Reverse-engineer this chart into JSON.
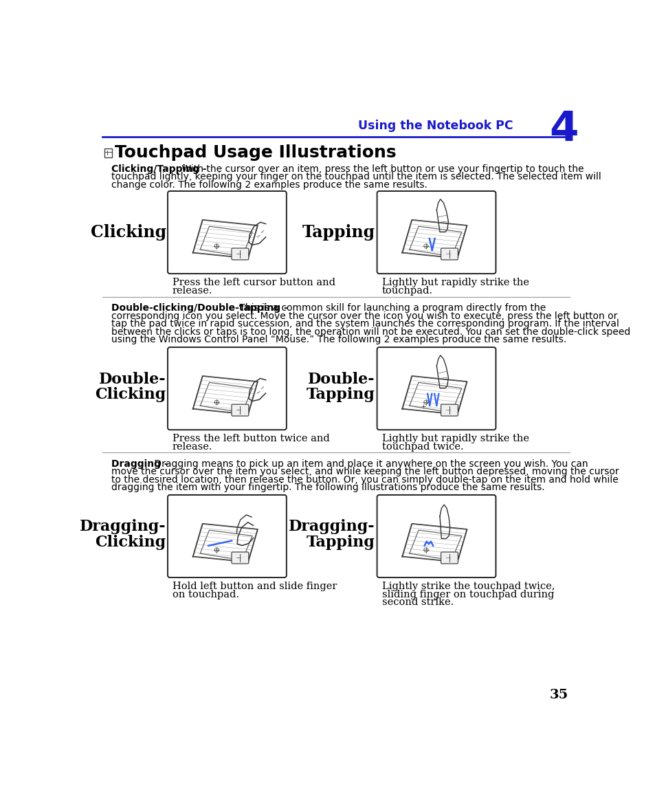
{
  "header_text": "Using the Notebook PC",
  "header_number": "4",
  "header_color": "#1a1acc",
  "title": "Touchpad Usage Illustrations",
  "section1_bold": "Clicking/Tapping -",
  "section1_rest": " With the cursor over an item, press the left button or use your fingertip to touch the touchpad lightly, keeping your finger on the touchpad until the item is selected. The selected item will change color. The following 2 examples produce the same results.",
  "label_clicking": "Clicking",
  "label_tapping": "Tapping",
  "caption1_left_1": "Press the left cursor button and",
  "caption1_left_2": "release.",
  "caption1_right_1": "Lightly but rapidly strike the",
  "caption1_right_2": "touchpad.",
  "section2_bold": "Double-clicking/Double-tapping -",
  "section2_rest": " This is a common skill for launching a program directly from the corresponding icon you select. Move the cursor over the icon you wish to execute, press the left button or tap the pad twice in rapid succession, and the system launches the corresponding program. If the interval between the clicks or taps is too long, the operation will not be executed. You can set the double-click speed using the Windows Control Panel “Mouse.” The following 2 examples produce the same results.",
  "label_dbl_clicking_1": "Double-",
  "label_dbl_clicking_2": "Clicking",
  "label_dbl_tapping_1": "Double-",
  "label_dbl_tapping_2": "Tapping",
  "caption2_left_1": "Press the left button twice and",
  "caption2_left_2": "release.",
  "caption2_right_1": "Lightly but rapidly strike the",
  "caption2_right_2": "touchpad twice.",
  "section3_bold": "Dragging -",
  "section3_rest": " Dragging means to pick up an item and place it anywhere on the screen you wish. You can move the cursor over the item you select, and while keeping the left button depressed, moving the cursor to the desired location, then release the button. Or, you can simply double-tap on the item and hold while dragging the item with your fingertip. The following illustrations produce the same results.",
  "label_drag_clicking_1": "Dragging-",
  "label_drag_clicking_2": "Clicking",
  "label_drag_tapping_1": "Dragging-",
  "label_drag_tapping_2": "Tapping",
  "caption3_left_1": "Hold left button and slide finger",
  "caption3_left_2": "on touchpad.",
  "caption3_right_1": "Lightly strike the touchpad twice,",
  "caption3_right_2": "sliding finger on touchpad during",
  "caption3_right_3": "second strike.",
  "page_number": "35",
  "bg_color": "#ffffff",
  "text_color": "#000000",
  "header_color_hex": "#1a1acc",
  "blue_line": "#4477ff"
}
